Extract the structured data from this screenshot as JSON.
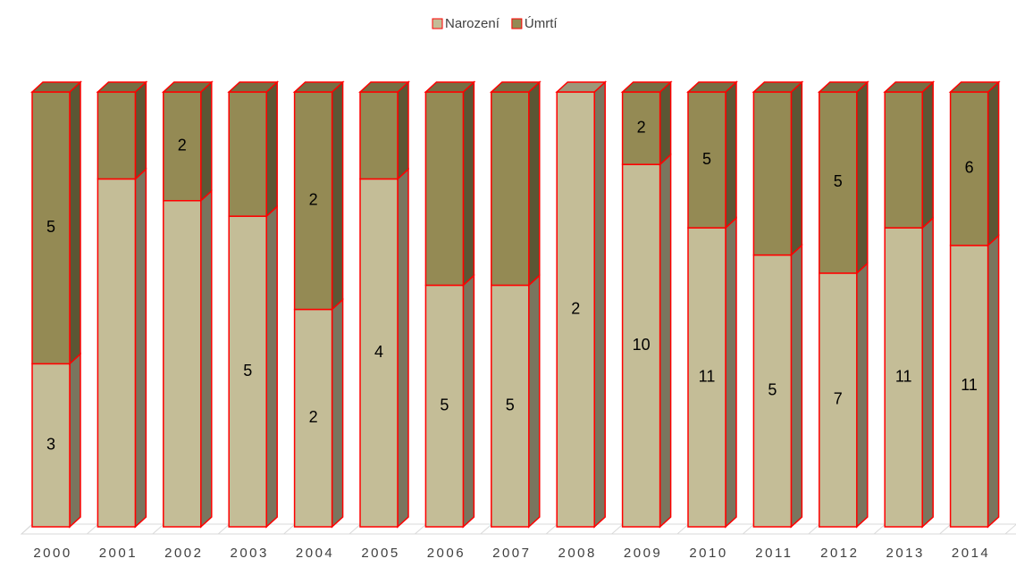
{
  "chart_data": {
    "type": "stacked_bar_3d_percent",
    "categories": [
      "2000",
      "2001",
      "2002",
      "2003",
      "2004",
      "2005",
      "2006",
      "2007",
      "2008",
      "2009",
      "2010",
      "2011",
      "2012",
      "2013",
      "2014"
    ],
    "series": [
      {
        "name": "Narození",
        "color": "#c4bd97",
        "values": [
          3,
          4,
          6,
          5,
          2,
          4,
          5,
          5,
          2,
          10,
          11,
          5,
          7,
          11,
          11
        ],
        "value_labels": [
          "3",
          null,
          null,
          "5",
          "2",
          "4",
          "5",
          "5",
          "2",
          "10",
          "11",
          "5",
          "7",
          "11",
          "11"
        ]
      },
      {
        "name": "Úmrtí",
        "color": "#948a54",
        "values": [
          5,
          1,
          2,
          2,
          2,
          1,
          4,
          4,
          0,
          2,
          5,
          3,
          5,
          5,
          6
        ],
        "value_labels": [
          "5",
          null,
          "2",
          null,
          "2",
          null,
          null,
          null,
          null,
          "2",
          "5",
          null,
          "5",
          null,
          "6"
        ]
      }
    ],
    "outline_color": "#ff0000",
    "legend": "top"
  }
}
